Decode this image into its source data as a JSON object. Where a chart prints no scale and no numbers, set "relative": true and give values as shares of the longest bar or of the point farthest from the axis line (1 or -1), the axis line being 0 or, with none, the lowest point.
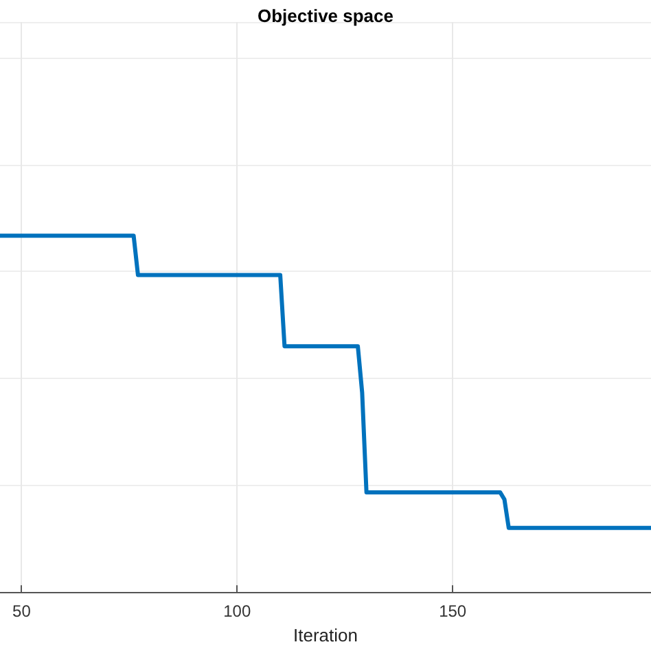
{
  "chart_data": {
    "type": "line",
    "title": "Objective space",
    "xlabel": "Iteration",
    "relative": true,
    "grid": true,
    "tick_labels": "x",
    "marker": "none",
    "line_style": "solid",
    "xlim": [
      45,
      196
    ],
    "xticks": [
      50,
      100,
      150
    ],
    "series": [
      {
        "color": "#0072bd",
        "x": [
          45,
          76,
          77,
          110,
          111,
          128,
          129,
          130,
          161,
          162,
          163,
          196
        ],
        "values": [
          1,
          1,
          0.89,
          0.89,
          0.69,
          0.69,
          0.56,
          0.28,
          0.28,
          0.26,
          0.18,
          0.18
        ]
      }
    ]
  }
}
